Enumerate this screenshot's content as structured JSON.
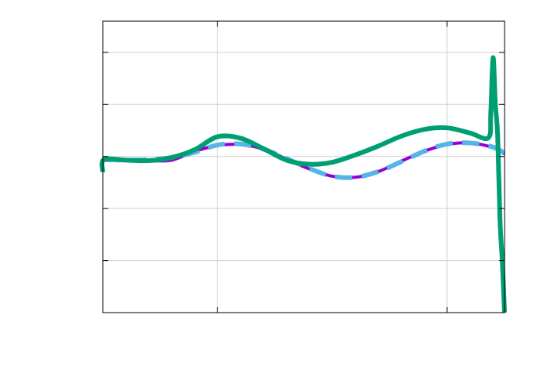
{
  "chart_data": {
    "type": "line",
    "title": "",
    "xlabel": "",
    "ylabel": "",
    "xlim": [
      0,
      3.5
    ],
    "ylim": [
      -3,
      2.6
    ],
    "grid": true,
    "xticks": [
      1,
      3
    ],
    "yticks": [
      -2,
      -1,
      0,
      1,
      2
    ],
    "series": [
      {
        "color": "#9400d3",
        "style": "solid",
        "x": [
          0,
          0.2,
          0.4,
          0.6,
          0.8,
          1.0,
          1.2,
          1.4,
          1.6,
          1.8,
          2.0,
          2.2,
          2.4,
          2.6,
          2.8,
          3.0,
          3.2,
          3.4,
          3.5
        ],
        "y": [
          -0.08,
          -0.08,
          -0.08,
          -0.07,
          0.1,
          0.21,
          0.23,
          0.14,
          -0.05,
          -0.24,
          -0.38,
          -0.4,
          -0.29,
          -0.09,
          0.1,
          0.23,
          0.26,
          0.17,
          0.05
        ]
      },
      {
        "color": "#56b4e9",
        "style": "dashed",
        "x": [
          0,
          0.2,
          0.4,
          0.6,
          0.8,
          1.0,
          1.2,
          1.4,
          1.6,
          1.8,
          2.0,
          2.2,
          2.4,
          2.6,
          2.8,
          3.0,
          3.2,
          3.4,
          3.5
        ],
        "y": [
          -0.06,
          -0.07,
          -0.06,
          -0.02,
          0.08,
          0.22,
          0.24,
          0.14,
          -0.04,
          -0.23,
          -0.38,
          -0.4,
          -0.29,
          -0.1,
          0.1,
          0.24,
          0.26,
          0.18,
          0.06
        ]
      },
      {
        "color": "#009e73",
        "style": "solid-spiky",
        "x": [
          0,
          0.01,
          0.2,
          0.4,
          0.6,
          0.8,
          1.0,
          1.2,
          1.4,
          1.6,
          1.8,
          2.0,
          2.2,
          2.4,
          2.6,
          2.8,
          3.0,
          3.2,
          3.36,
          3.38,
          3.4,
          3.42,
          3.44,
          3.46,
          3.48,
          3.5
        ],
        "y": [
          -0.3,
          -0.06,
          -0.07,
          -0.08,
          -0.02,
          0.13,
          0.38,
          0.35,
          0.15,
          -0.07,
          -0.15,
          -0.11,
          0.03,
          0.2,
          0.39,
          0.52,
          0.55,
          0.45,
          0.36,
          0.85,
          1.9,
          1.0,
          0.4,
          -1.2,
          -2.0,
          -3.0
        ]
      }
    ]
  }
}
